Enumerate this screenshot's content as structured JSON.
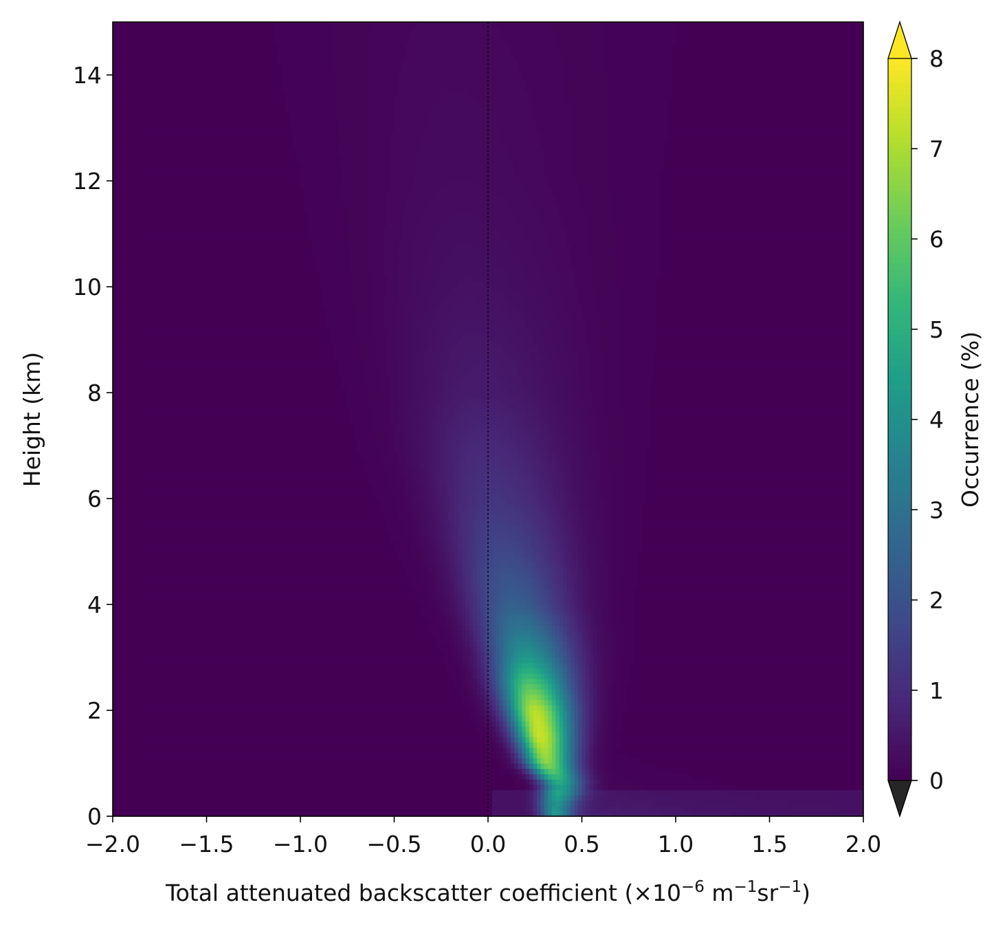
{
  "chart_data": {
    "type": "heatmap",
    "title": "",
    "xlabel": "Total attenuated backscatter coefficient",
    "xlabel_units": {
      "open": " (×10",
      "exp1": "−6",
      "unit_m": " m",
      "exp2": "−1",
      "unit_sr": "sr",
      "exp3": "−1",
      "close": ")"
    },
    "ylabel": "Height (km)",
    "xlim": [
      -2.0,
      2.0
    ],
    "ylim": [
      0,
      15
    ],
    "x_ticks": [
      -2.0,
      -1.5,
      -1.0,
      -0.5,
      0.0,
      0.5,
      1.0,
      1.5,
      2.0
    ],
    "x_tick_labels": [
      "−2.0",
      "−1.5",
      "−1.0",
      "−0.5",
      "0.0",
      "0.5",
      "1.0",
      "1.5",
      "2.0"
    ],
    "y_ticks": [
      0,
      2,
      4,
      6,
      8,
      10,
      12,
      14
    ],
    "y_tick_labels": [
      "0",
      "2",
      "4",
      "6",
      "8",
      "10",
      "12",
      "14"
    ],
    "reference_line": {
      "x": 0.0,
      "style": "dashed",
      "color": "#000000"
    },
    "colorbar": {
      "label": "Occurrence (%)",
      "colormap": "viridis",
      "range": [
        0,
        8
      ],
      "ticks": [
        0,
        1,
        2,
        3,
        4,
        5,
        6,
        7,
        8
      ],
      "tick_labels": [
        "0",
        "1",
        "2",
        "3",
        "4",
        "5",
        "6",
        "7",
        "8"
      ],
      "extend": "both",
      "over_color": "#fde725",
      "under_color": "#262626"
    },
    "distribution_ridge": [
      {
        "height_km": 0.2,
        "x": 0.35,
        "peak_occurrence": 3.5
      },
      {
        "height_km": 0.6,
        "x": 0.38,
        "peak_occurrence": 4.5
      },
      {
        "height_km": 1.0,
        "x": 0.31,
        "peak_occurrence": 6.5
      },
      {
        "height_km": 1.5,
        "x": 0.28,
        "peak_occurrence": 7.4
      },
      {
        "height_km": 2.0,
        "x": 0.25,
        "peak_occurrence": 7.2
      },
      {
        "height_km": 2.5,
        "x": 0.22,
        "peak_occurrence": 5.8
      },
      {
        "height_km": 3.0,
        "x": 0.2,
        "peak_occurrence": 4.2
      },
      {
        "height_km": 3.5,
        "x": 0.17,
        "peak_occurrence": 3.2
      },
      {
        "height_km": 4.0,
        "x": 0.13,
        "peak_occurrence": 2.4
      },
      {
        "height_km": 5.0,
        "x": 0.08,
        "peak_occurrence": 1.7
      },
      {
        "height_km": 6.0,
        "x": 0.03,
        "peak_occurrence": 1.2
      },
      {
        "height_km": 7.0,
        "x": -0.02,
        "peak_occurrence": 0.9
      },
      {
        "height_km": 8.0,
        "x": -0.05,
        "peak_occurrence": 0.6
      },
      {
        "height_km": 10.0,
        "x": -0.1,
        "peak_occurrence": 0.35
      },
      {
        "height_km": 12.0,
        "x": -0.15,
        "peak_occurrence": 0.22
      },
      {
        "height_km": 15.0,
        "x": -0.2,
        "peak_occurrence": 0.15
      }
    ]
  }
}
